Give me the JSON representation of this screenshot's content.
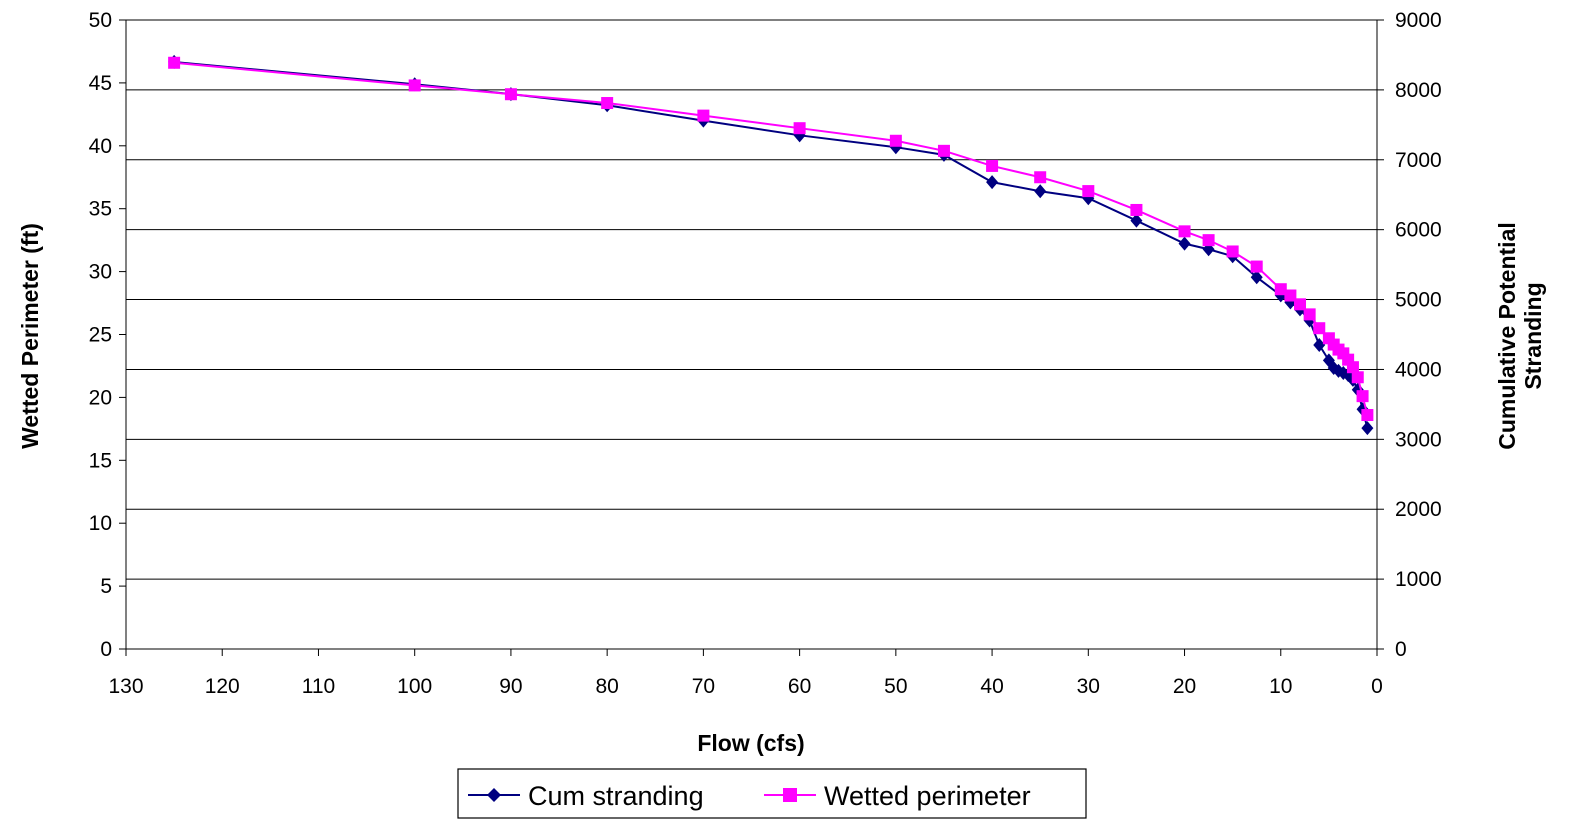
{
  "chart_data": {
    "type": "line",
    "xlabel": "Flow (cfs)",
    "ylabel": "Wetted Perimeter (ft)",
    "y2label": [
      "Cumulative Potential",
      "Stranding"
    ],
    "x_reversed": true,
    "xlim": [
      130,
      0
    ],
    "ylim": [
      0,
      50
    ],
    "y2lim": [
      0,
      9000
    ],
    "xticks": [
      "130",
      "120",
      "110",
      "100",
      "90",
      "80",
      "70",
      "60",
      "50",
      "40",
      "30",
      "20",
      "10",
      "0"
    ],
    "yticks": [
      "0",
      "5",
      "10",
      "15",
      "20",
      "25",
      "30",
      "35",
      "40",
      "45",
      "50"
    ],
    "y2ticks": [
      "0",
      "1000",
      "2000",
      "3000",
      "4000",
      "5000",
      "6000",
      "7000",
      "8000",
      "9000"
    ],
    "grid": "horizontal major lines on right axis",
    "legend": "bottom",
    "series": [
      {
        "name": "Cum stranding",
        "axis": "right",
        "color": "#000080",
        "marker": "diamond",
        "x": [
          125,
          100,
          90,
          80,
          70,
          60,
          50,
          45,
          40,
          35,
          30,
          25,
          20,
          17.5,
          15,
          12.5,
          10,
          9,
          8,
          7,
          6,
          5,
          4.5,
          4,
          3.5,
          3,
          2.5,
          2,
          1.5,
          1
        ],
        "values": [
          8400,
          8080,
          7940,
          7780,
          7560,
          7350,
          7180,
          7070,
          6680,
          6550,
          6450,
          6130,
          5800,
          5720,
          5620,
          5320,
          5060,
          4960,
          4860,
          4700,
          4350,
          4130,
          4020,
          3980,
          3950,
          3920,
          3850,
          3710,
          3430,
          3160
        ]
      },
      {
        "name": "Wetted perimeter",
        "axis": "left",
        "color": "#FF00FF",
        "marker": "square",
        "x": [
          125,
          100,
          90,
          80,
          70,
          60,
          50,
          45,
          40,
          35,
          30,
          25,
          20,
          17.5,
          15,
          12.5,
          10,
          9,
          8,
          7,
          6,
          5,
          4.5,
          4,
          3.5,
          3,
          2.5,
          2,
          1.5,
          1
        ],
        "values": [
          46.6,
          44.8,
          44.1,
          43.4,
          42.4,
          41.4,
          40.4,
          39.6,
          38.4,
          37.5,
          36.4,
          34.9,
          33.2,
          32.5,
          31.6,
          30.4,
          28.6,
          28.1,
          27.4,
          26.6,
          25.5,
          24.7,
          24.2,
          23.8,
          23.5,
          23.0,
          22.4,
          21.6,
          20.1,
          18.6
        ]
      }
    ]
  }
}
